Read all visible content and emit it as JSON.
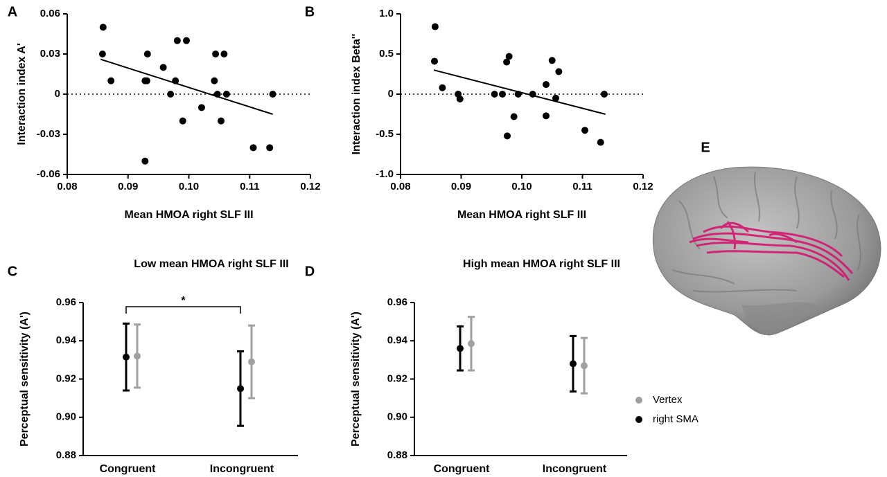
{
  "chart_data": [
    {
      "type": "scatter",
      "panel": "A",
      "x_label": "Mean HMOA right SLF III",
      "y_label": "Interaction index A'",
      "x": [
        0.0859,
        0.0858,
        0.0872,
        0.0928,
        0.0931,
        0.0932,
        0.0928,
        0.0958,
        0.097,
        0.0978,
        0.0981,
        0.0996,
        0.099,
        0.1021,
        0.1042,
        0.1044,
        0.1047,
        0.1053,
        0.1058,
        0.1062,
        0.1106,
        0.1133,
        0.1138
      ],
      "y": [
        0.05,
        0.03,
        0.01,
        0.01,
        0.01,
        0.03,
        -0.05,
        0.02,
        0,
        0.01,
        0.04,
        0.04,
        -0.02,
        -0.01,
        0.01,
        0.03,
        0,
        -0.02,
        0.03,
        0,
        -0.04,
        -0.04,
        0
      ],
      "color": "#000000",
      "trend": {
        "x": [
          0.0855,
          0.1138
        ],
        "y": [
          0.026,
          -0.015
        ]
      },
      "hline": 0,
      "xlim": [
        0.08,
        0.12
      ],
      "xticks": [
        0.08,
        0.09,
        {
          "value": 0.1,
          "label": "0.10"
        },
        0.11,
        0.12
      ],
      "ylim": [
        -0.06,
        0.06
      ],
      "yticks": [
        -0.06,
        -0.03,
        0,
        0.03,
        0.06
      ]
    },
    {
      "type": "scatter",
      "panel": "B",
      "x_label": "Mean HMOA right SLF III",
      "y_label": "Interaction index Beta''",
      "x": [
        0.0857,
        0.0856,
        0.0869,
        0.0895,
        0.0898,
        0.0955,
        0.0968,
        0.0975,
        0.0979,
        0.0976,
        0.0987,
        0.0994,
        0.1018,
        0.104,
        0.104,
        0.105,
        0.1056,
        0.1061,
        0.1104,
        0.113,
        0.1136
      ],
      "y": [
        0.84,
        0.41,
        0.08,
        0,
        -0.06,
        0,
        0,
        0.4,
        0.47,
        -0.52,
        -0.28,
        0,
        0,
        0.12,
        -0.27,
        0.42,
        -0.05,
        0.28,
        -0.45,
        -0.6,
        0
      ],
      "color": "#000000",
      "trend": {
        "x": [
          0.0855,
          0.1138
        ],
        "y": [
          0.3,
          -0.25
        ]
      },
      "hline": 0,
      "xlim": [
        0.08,
        0.12
      ],
      "xticks": [
        0.08,
        0.09,
        {
          "value": 0.1,
          "label": "0.10"
        },
        0.11,
        0.12
      ],
      "ylim": [
        -1,
        1
      ],
      "yticks": [
        {
          "value": -1,
          "label": "-1.0"
        },
        -0.5,
        0,
        0.5,
        {
          "value": 1,
          "label": "1.0"
        }
      ]
    },
    {
      "type": "errorbar",
      "panel": "C",
      "title": "Low mean HMOA right SLF III",
      "y_label": "Perceptual sensitivity (A')",
      "categories": [
        "Congruent",
        "Incongruent"
      ],
      "series": [
        {
          "name": "Vertex",
          "color": "#a0a0a0",
          "values": [
            0.932,
            0.929
          ],
          "errors": [
            0.0165,
            0.019
          ]
        },
        {
          "name": "right SMA",
          "color": "#000000",
          "values": [
            0.9315,
            0.915
          ],
          "errors": [
            0.0175,
            0.0195
          ]
        }
      ],
      "annotation": "*",
      "ylim": [
        0.88,
        0.96
      ],
      "yticks": [
        0.88,
        {
          "value": 0.9,
          "label": "0.90"
        },
        0.92,
        0.94,
        0.96
      ]
    },
    {
      "type": "errorbar",
      "panel": "D",
      "title": "High mean HMOA right SLF III",
      "y_label": "Perceptual sensitivity (A')",
      "categories": [
        "Congruent",
        "Incongruent"
      ],
      "series": [
        {
          "color": "#a0a0a0",
          "values": [
            0.9385,
            0.927
          ],
          "errors": [
            0.014,
            0.0145
          ]
        },
        {
          "color": "#000000",
          "values": [
            0.936,
            0.928
          ],
          "errors": [
            0.0115,
            0.0145
          ]
        }
      ],
      "ylim": [
        0.88,
        0.96
      ],
      "yticks": [
        0.88,
        {
          "value": 0.9,
          "label": "0.90"
        },
        0.92,
        0.94,
        0.96
      ]
    },
    {
      "type": "image",
      "panel": "E"
    }
  ]
}
